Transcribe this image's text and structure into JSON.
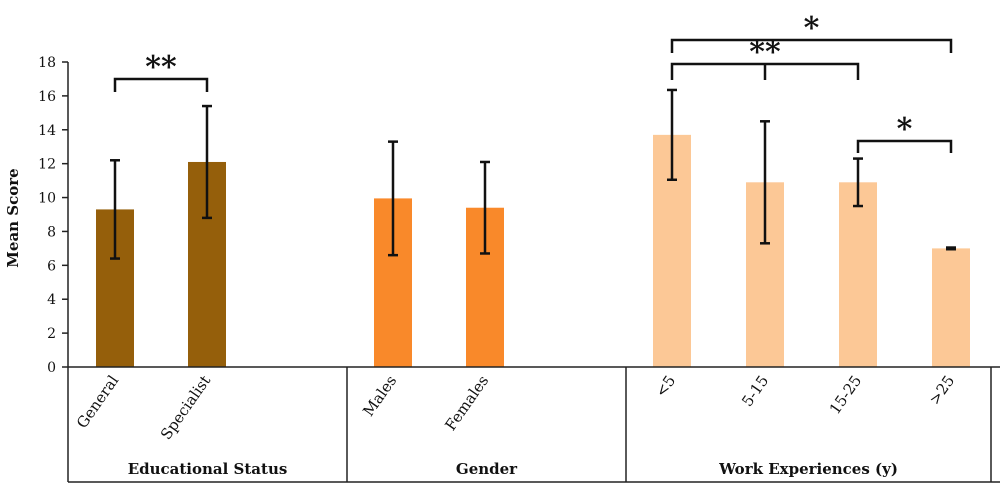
{
  "chart_data": {
    "type": "bar",
    "ylabel": "Mean Score",
    "ylim": [
      0,
      18
    ],
    "yticks": [
      0,
      2,
      4,
      6,
      8,
      10,
      12,
      14,
      16,
      18
    ],
    "groups": [
      {
        "name": "Educational Status",
        "color": "#955f0b",
        "categories": [
          "General",
          "Specialist"
        ],
        "values": [
          9.3,
          12.1
        ],
        "errors": [
          2.9,
          3.3
        ]
      },
      {
        "name": "Gender",
        "color": "#f9892a",
        "categories": [
          "Males",
          "Females"
        ],
        "values": [
          9.95,
          9.4
        ],
        "errors": [
          3.35,
          2.7
        ]
      },
      {
        "name": "Work Experiences (y)",
        "color": "#fcc896",
        "categories": [
          "<5",
          "5-15",
          "15-25",
          ">25"
        ],
        "values": [
          13.7,
          10.9,
          10.9,
          7.0
        ],
        "errors": [
          2.65,
          3.6,
          1.4,
          0.05
        ]
      }
    ],
    "significance": [
      {
        "from": "General",
        "to": "Specialist",
        "label": "**"
      },
      {
        "from": "<5",
        "to": ">25",
        "label": "*"
      },
      {
        "from": "<5",
        "to": "15-25",
        "label": "**"
      },
      {
        "from": "15-25",
        "to": ">25",
        "label": "*"
      }
    ]
  }
}
